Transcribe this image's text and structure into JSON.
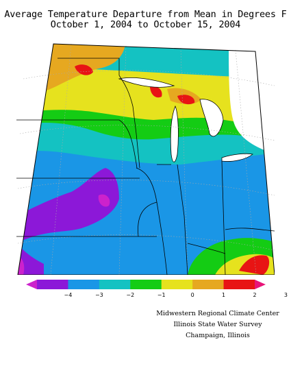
{
  "title": {
    "line1": "Average Temperature Departure from Mean in Degrees F",
    "line2": "October 1, 2004 to October 15, 2004"
  },
  "legend": {
    "ticks": [
      "−4",
      "−3",
      "−2",
      "−1",
      "0",
      "1",
      "2",
      "3"
    ],
    "colors": [
      "#cc22cc",
      "#8c18d8",
      "#1a96e6",
      "#14c2c2",
      "#14cc14",
      "#e6e21e",
      "#e6a820",
      "#e81414",
      "#e81478"
    ]
  },
  "map_colors": {
    "water": "#ffffff",
    "boundary": "#000000",
    "graticule": "#aaaaaa"
  },
  "credits": {
    "line1": "Midwestern Regional Climate Center",
    "line2": "Illinois State Water Survey",
    "line3": "Champaign, Illinois"
  }
}
